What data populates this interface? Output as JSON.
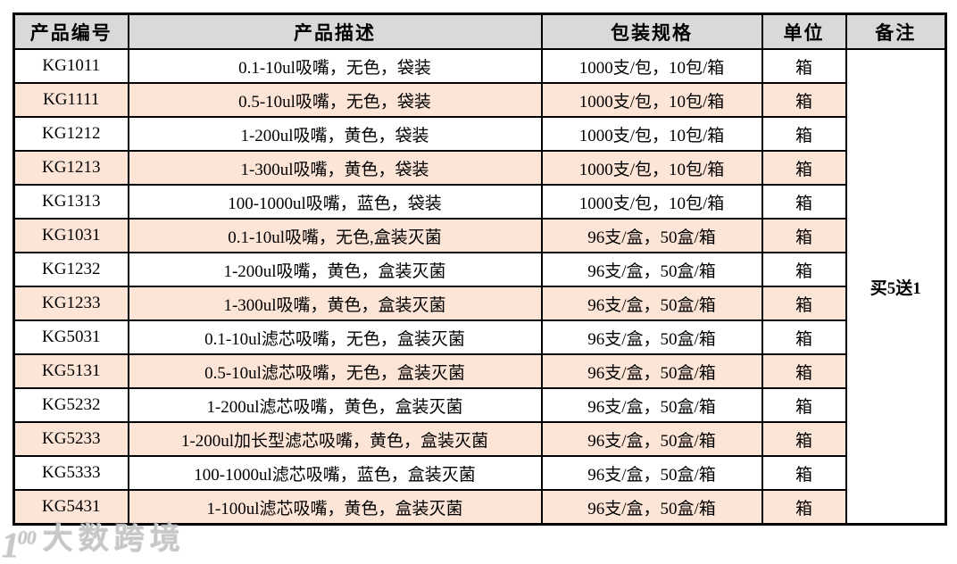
{
  "table": {
    "headers": {
      "code": "产品编号",
      "description": "产品描述",
      "packaging": "包装规格",
      "unit": "单位",
      "remark": "备注"
    },
    "rows": [
      {
        "code": "KG1011",
        "description": "0.1-10ul吸嘴，无色，袋装",
        "packaging": "1000支/包，10包/箱",
        "unit": "箱"
      },
      {
        "code": "KG1111",
        "description": "0.5-10ul吸嘴，无色，袋装",
        "packaging": "1000支/包，10包/箱",
        "unit": "箱"
      },
      {
        "code": "KG1212",
        "description": "1-200ul吸嘴，黄色，袋装",
        "packaging": "1000支/包，10包/箱",
        "unit": "箱"
      },
      {
        "code": "KG1213",
        "description": "1-300ul吸嘴，黄色，袋装",
        "packaging": "1000支/包，10包/箱",
        "unit": "箱"
      },
      {
        "code": "KG1313",
        "description": "100-1000ul吸嘴，蓝色，袋装",
        "packaging": "1000支/包，10包/箱",
        "unit": "箱"
      },
      {
        "code": "KG1031",
        "description": "0.1-10ul吸嘴，无色,盒装灭菌",
        "packaging": "96支/盒，50盒/箱",
        "unit": "箱"
      },
      {
        "code": "KG1232",
        "description": "1-200ul吸嘴，黄色，盒装灭菌",
        "packaging": "96支/盒，50盒/箱",
        "unit": "箱"
      },
      {
        "code": "KG1233",
        "description": "1-300ul吸嘴，黄色，盒装灭菌",
        "packaging": "96支/盒，50盒/箱",
        "unit": "箱"
      },
      {
        "code": "KG5031",
        "description": "0.1-10ul滤芯吸嘴，无色，盒装灭菌",
        "packaging": "96支/盒，50盒/箱",
        "unit": "箱"
      },
      {
        "code": "KG5131",
        "description": "0.5-10ul滤芯吸嘴，无色，盒装灭菌",
        "packaging": "96支/盒，50盒/箱",
        "unit": "箱"
      },
      {
        "code": "KG5232",
        "description": "1-200ul滤芯吸嘴，黄色，盒装灭菌",
        "packaging": "96支/盒，50盒/箱",
        "unit": "箱"
      },
      {
        "code": "KG5233",
        "description": "1-200ul加长型滤芯吸嘴，黄色，盒装灭菌",
        "packaging": "96支/盒，50盒/箱",
        "unit": "箱"
      },
      {
        "code": "KG5333",
        "description": "100-1000ul滤芯吸嘴，蓝色，盒装灭菌",
        "packaging": "96支/盒，50盒/箱",
        "unit": "箱"
      },
      {
        "code": "KG5431",
        "description": "1-100ul滤芯吸嘴，黄色，盒装灭菌",
        "packaging": "96支/盒，50盒/箱",
        "unit": "箱"
      }
    ],
    "merged_remark": "买5送1"
  },
  "watermark": {
    "logo": "1",
    "logo_sup": "00",
    "text": "大数跨境"
  },
  "colors": {
    "header_bg": "#d9d9d9",
    "alt_row_bg": "#fce4d6",
    "border": "#000000",
    "remark_text": "#ff0000"
  }
}
